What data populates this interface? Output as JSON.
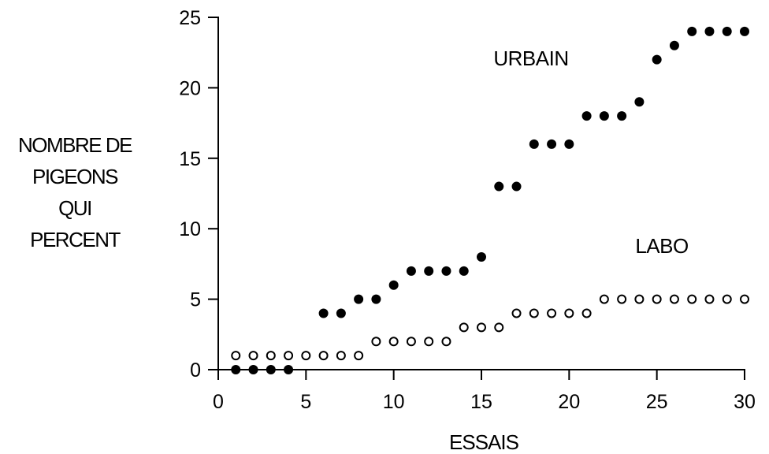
{
  "chart_data": {
    "type": "scatter",
    "xlabel": "ESSAIS",
    "ylabel_lines": [
      "NOMBRE DE",
      "PIGEONS",
      "QUI",
      "PERCENT"
    ],
    "xlim": [
      0,
      30
    ],
    "ylim": [
      0,
      25
    ],
    "xticks": [
      0,
      5,
      10,
      15,
      20,
      25,
      30
    ],
    "yticks": [
      0,
      5,
      10,
      15,
      20,
      25
    ],
    "grid": false,
    "series": [
      {
        "name": "URBAIN",
        "marker": "filled-circle",
        "color": "#000000",
        "x": [
          1,
          2,
          3,
          4,
          6,
          7,
          8,
          9,
          10,
          11,
          12,
          13,
          14,
          15,
          16,
          17,
          18,
          19,
          20,
          21,
          22,
          23,
          24,
          25,
          26,
          27,
          28,
          29,
          30
        ],
        "y": [
          0,
          0,
          0,
          0,
          4,
          4,
          5,
          5,
          6,
          7,
          7,
          7,
          7,
          8,
          13,
          13,
          16,
          16,
          16,
          18,
          18,
          18,
          19,
          22,
          23,
          24,
          24,
          24,
          24
        ]
      },
      {
        "name": "LABO",
        "marker": "open-circle",
        "color": "#000000",
        "x": [
          1,
          2,
          3,
          4,
          5,
          6,
          7,
          8,
          9,
          10,
          11,
          12,
          13,
          14,
          15,
          16,
          17,
          18,
          19,
          20,
          21,
          22,
          23,
          24,
          25,
          26,
          27,
          28,
          29,
          30
        ],
        "y": [
          1,
          1,
          1,
          1,
          1,
          1,
          1,
          1,
          2,
          2,
          2,
          2,
          2,
          3,
          3,
          3,
          4,
          4,
          4,
          4,
          4,
          5,
          5,
          5,
          5,
          5,
          5,
          5,
          5,
          5
        ]
      }
    ]
  }
}
